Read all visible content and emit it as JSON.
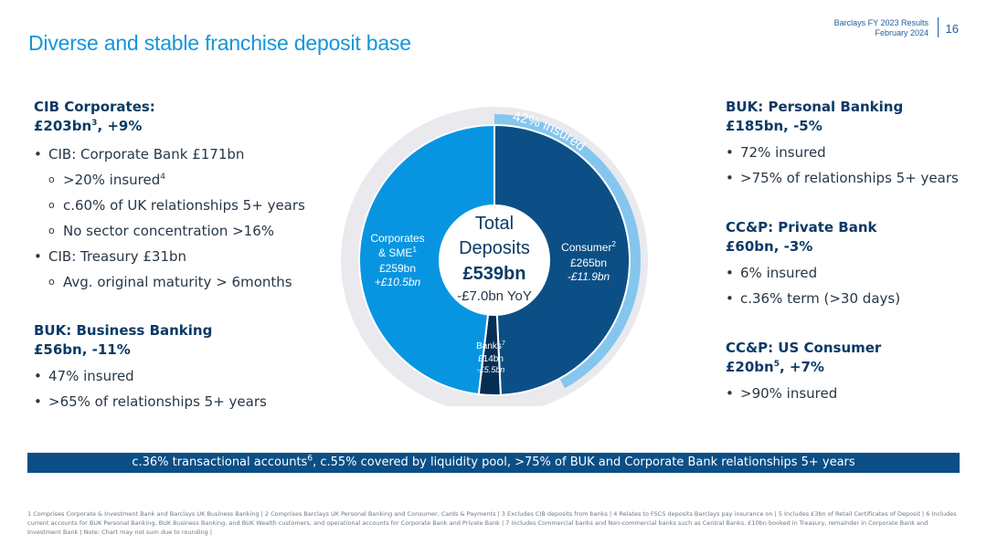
{
  "header": {
    "meta_line1": "Barclays FY 2023 Results",
    "meta_line2": "February 2024",
    "page_number": "16"
  },
  "title": "Diverse and stable franchise deposit base",
  "left": {
    "cib": {
      "title_line1": "CIB Corporates:",
      "title_line2": "£203bn",
      "title_line2_sup": "3",
      "title_line2_rest": ", +9%",
      "bullet1": "CIB: Corporate Bank £171bn",
      "sub1": ">20% insured",
      "sub1_sup": "4",
      "sub2": "c.60% of UK relationships 5+ years",
      "sub3": "No sector concentration >16%",
      "bullet2": "CIB: Treasury £31bn",
      "sub4": "Avg. original maturity > 6months"
    },
    "buk_business": {
      "title_line1": "BUK: Business Banking",
      "title_line2": "£56bn, -11%",
      "bullet1": "47% insured",
      "bullet2": ">65% of relationships 5+ years"
    }
  },
  "right": {
    "buk_personal": {
      "title_line1": "BUK: Personal Banking",
      "title_line2": "£185bn, -5%",
      "bullet1": "72% insured",
      "bullet2": ">75% of relationships 5+ years"
    },
    "private_bank": {
      "title_line1": "CC&P: Private Bank",
      "title_line2": "£60bn, -3%",
      "bullet1": "6% insured",
      "bullet2": "c.36% term (>30 days)"
    },
    "us_consumer": {
      "title_line1": "CC&P: US Consumer",
      "title_line2": "£20bn",
      "title_line2_sup": "5",
      "title_line2_rest": ", +7%",
      "bullet1": ">90% insured"
    }
  },
  "chart_data": {
    "type": "donut",
    "center": {
      "line1": "Total",
      "line2": "Deposits",
      "total": "£539bn",
      "change": "-£7.0bn YoY"
    },
    "insured_label": "42% insured",
    "insured_fraction": 0.42,
    "segments": [
      {
        "name": "Consumer",
        "sup": "2",
        "value": 265,
        "value_label": "£265bn",
        "change": "-£11.9bn",
        "color": "#0b4f86"
      },
      {
        "name": "Banks",
        "sup": "7",
        "value": 14,
        "value_label": "£14bn",
        "change": "-£5.5bn",
        "color": "#062e55"
      },
      {
        "name_line1": "Corporates",
        "name_line2": "& SME",
        "sup": "1",
        "value": 259,
        "value_label": "£259bn",
        "change": "+£10.5bn",
        "color": "#0795e2"
      }
    ],
    "colors": {
      "insured_arc": "#85c6ee",
      "outer_ring": "#e9e9ee"
    }
  },
  "banner": {
    "text_part1": "c.36% transactional accounts",
    "sup": "6",
    "text_part2": ", c.55% covered by liquidity pool, >75% of BUK and Corporate Bank relationships 5+ years"
  },
  "footnote": "1 Comprises Corporate & Investment Bank and Barclays UK Business Banking | 2 Comprises Barclays UK Personal Banking and Consumer, Cards & Payments | 3 Excludes CIB deposits from banks | 4 Relates to FSCS deposits Barclays pay insurance on | 5 Includes £3bn of Retail Certificates of Deposit | 6 Includes current accounts for BUK Personal Banking, BUK Business Banking, and BUK Wealth customers, and operational accounts for Corporate Bank and Private Bank | 7 Includes Commercial banks and Non-commercial banks such as Central Banks. £10bn booked in Treasury, remainder in Corporate Bank and Investment Bank | Note: Chart may not sum due to rounding |"
}
